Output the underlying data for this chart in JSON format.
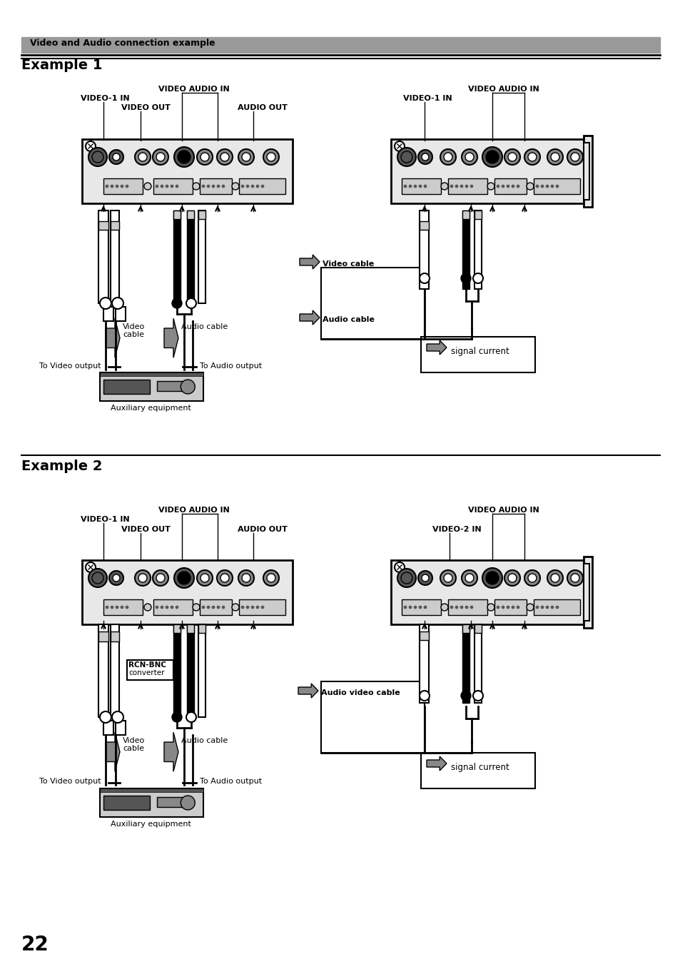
{
  "page_bg": "#ffffff",
  "header_bg": "#999999",
  "header_text": "Video and Audio connection example",
  "header_fontsize": 9,
  "page_number": "22",
  "page_number_fontsize": 20,
  "example1_title": "Example 1",
  "example2_title": "Example 2",
  "example_title_fontsize": 14,
  "sep_color": "#000000",
  "black": "#000000",
  "white": "#ffffff",
  "lgray": "#cccccc",
  "mgray": "#888888",
  "dgray": "#555555",
  "panel_bg": "#e8e8e8",
  "panel_ec": "#000000"
}
